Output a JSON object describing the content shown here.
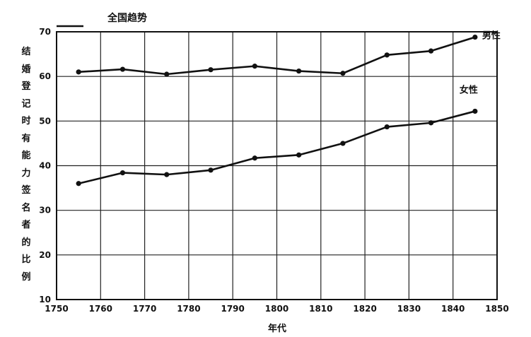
{
  "chart_data": {
    "type": "line",
    "legend_text": "全国趋势",
    "xlabel": "年代",
    "ylabel": "结婚登记时有能力签名者的比例",
    "xlim": [
      1750,
      1850
    ],
    "ylim": [
      10,
      70
    ],
    "grid": true,
    "x_ticks": [
      "1750",
      "1760",
      "1770",
      "1780",
      "1790",
      "1800",
      "1810",
      "1820",
      "1830",
      "1840",
      "1850"
    ],
    "y_ticks": [
      "10",
      "20",
      "30",
      "40",
      "50",
      "60",
      "70"
    ],
    "x": [
      1755,
      1765,
      1775,
      1785,
      1795,
      1805,
      1815,
      1825,
      1835,
      1845
    ],
    "series": [
      {
        "name": "男性",
        "values": [
          61.0,
          61.6,
          60.5,
          61.5,
          62.3,
          61.2,
          60.7,
          64.8,
          65.7,
          68.8
        ]
      },
      {
        "name": "女性",
        "values": [
          36.0,
          38.4,
          38.0,
          39.0,
          41.7,
          42.4,
          45.0,
          48.7,
          49.6,
          52.2
        ]
      }
    ]
  }
}
